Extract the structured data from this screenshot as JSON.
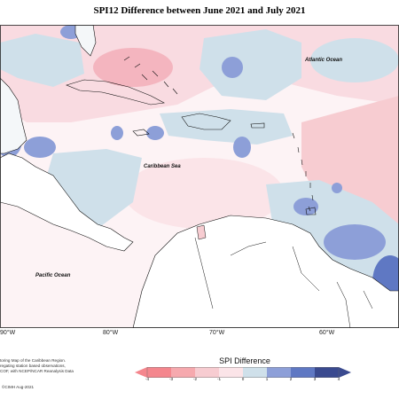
{
  "title": "SPI12 Difference between June 2021 and July 2021",
  "ocean_labels": {
    "atlantic": "Atlantic Ocean",
    "caribbean": "Caribbean Sea",
    "pacific": "Pacific Ocean"
  },
  "longitude_labels": [
    "90°W",
    "80°W",
    "70°W",
    "60°W"
  ],
  "credits_lines": [
    "toring Map of the Caribbean Region.",
    "regating station based observations,",
    "COF, with NCEP/NCAR Reanalysis Data"
  ],
  "copyright": "©CIMH Aug-2021",
  "legend": {
    "title": "SPI Difference",
    "ticks": [
      "-4",
      "-3",
      "-2",
      "-1",
      "0",
      "1",
      "2",
      "3",
      "4"
    ],
    "colors": [
      "#f4868d",
      "#f6a9ae",
      "#f7ccd1",
      "#fbe4e8",
      "#ffffff",
      "#cfe0ea",
      "#8d9fd8",
      "#5f78c3",
      "#3a4a8f"
    ]
  },
  "colors": {
    "dry_light": "#fbe4e8",
    "dry_mid": "#f7ccd1",
    "wet_light": "#cfe0ea",
    "wet_mid": "#8d9fd8",
    "wet_dark": "#5f78c3"
  }
}
